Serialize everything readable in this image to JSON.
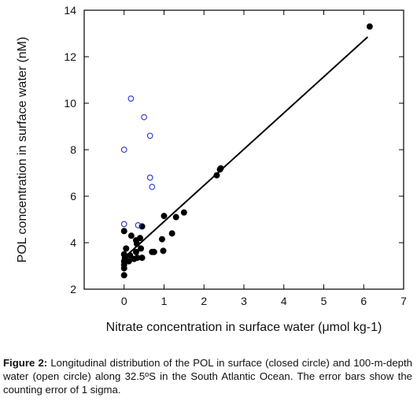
{
  "chart_data": {
    "type": "scatter",
    "title": "",
    "xlabel": "Nitrate concentration in surface water (μmol kg-1)",
    "ylabel": "POL concentration in surface water (nM)",
    "xlim": [
      -1,
      7
    ],
    "ylim": [
      2,
      14
    ],
    "x_ticks": [
      0,
      1,
      2,
      3,
      4,
      5,
      6,
      7
    ],
    "y_ticks": [
      2,
      4,
      6,
      8,
      10,
      12,
      14
    ],
    "grid": false,
    "legend": "none",
    "series": [
      {
        "marker": "closed-circle",
        "color": "#000000",
        "points": [
          [
            0.0,
            2.6
          ],
          [
            0.0,
            2.9
          ],
          [
            0.0,
            3.05
          ],
          [
            0.0,
            3.2
          ],
          [
            0.02,
            3.35
          ],
          [
            0.0,
            3.5
          ],
          [
            0.05,
            3.75
          ],
          [
            0.0,
            4.5
          ],
          [
            0.12,
            3.2
          ],
          [
            0.15,
            3.45
          ],
          [
            0.18,
            4.3
          ],
          [
            0.25,
            3.3
          ],
          [
            0.3,
            3.6
          ],
          [
            0.3,
            4.1
          ],
          [
            0.32,
            3.95
          ],
          [
            0.33,
            3.35
          ],
          [
            0.4,
            4.2
          ],
          [
            0.42,
            3.75
          ],
          [
            0.45,
            4.7
          ],
          [
            0.45,
            3.35
          ],
          [
            0.7,
            3.6
          ],
          [
            0.75,
            3.6
          ],
          [
            0.95,
            4.15
          ],
          [
            0.98,
            3.65
          ],
          [
            1.0,
            5.15
          ],
          [
            1.2,
            4.4
          ],
          [
            1.3,
            5.1
          ],
          [
            1.5,
            5.3
          ],
          [
            2.32,
            6.9
          ],
          [
            2.4,
            7.15
          ],
          [
            2.42,
            7.2
          ],
          [
            6.15,
            13.3
          ]
        ]
      },
      {
        "marker": "open-circle",
        "color": "#2233cc",
        "points": [
          [
            0.0,
            8.0
          ],
          [
            0.0,
            4.8
          ],
          [
            0.17,
            10.2
          ],
          [
            0.35,
            4.75
          ],
          [
            0.5,
            9.4
          ],
          [
            0.65,
            8.6
          ],
          [
            0.65,
            6.8
          ],
          [
            0.7,
            6.4
          ]
        ]
      }
    ],
    "regression_line": {
      "x": [
        0.0,
        6.1
      ],
      "y": [
        3.35,
        12.85
      ]
    }
  },
  "caption": {
    "label": "Figure 2:",
    "text": " Longitudinal distribution of the POL in surface (closed circle) and 100-m-depth water (open circle) along 32.5ºS in the South Atlantic Ocean. The error bars show the counting error of 1 sigma."
  }
}
